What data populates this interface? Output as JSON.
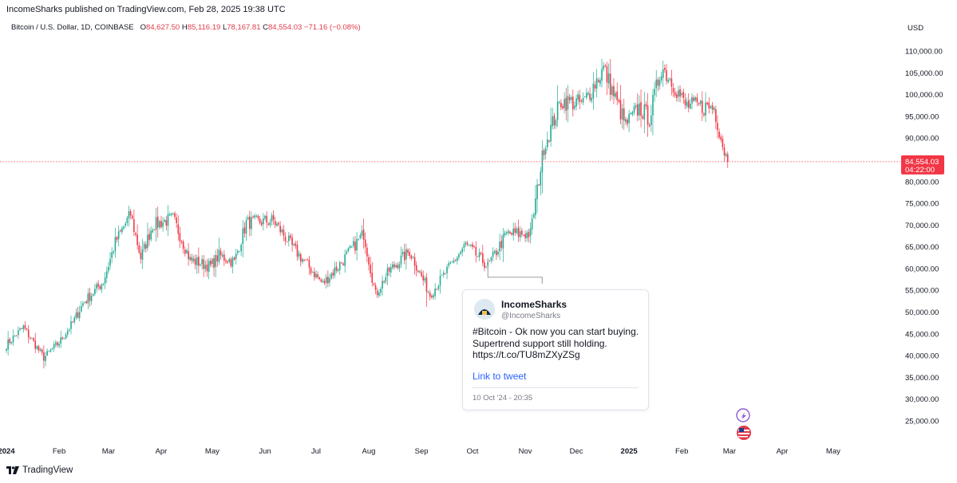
{
  "header": {
    "published": "IncomeSharks published on TradingView.com, Feb 28, 2025 19:38 UTC"
  },
  "legend": {
    "symbol": "Bitcoin / U.S. Dollar, 1D, COINBASE",
    "o_label": "O",
    "o_value": "84,627.50",
    "h_label": "H",
    "h_value": "85,116.19",
    "l_label": "L",
    "l_value": "78,167.81",
    "c_label": "C",
    "c_value": "84,554.03",
    "change": "−71.16 (−0.08%)"
  },
  "price_axis": {
    "currency": "USD",
    "last_price": "84,554.03",
    "countdown": "04:22:00"
  },
  "tweet": {
    "name": "IncomeSharks",
    "handle": "@IncomeSharks",
    "line1": "#Bitcoin - Ok now you can start buying.",
    "line2": "Supertrend support still holding.",
    "line3": "https://t.co/TU8mZXyZSg",
    "link_label": "Link to tweet",
    "date": "10 Oct '24 - 20:35"
  },
  "footer": {
    "brand": "TradingView"
  },
  "colors": {
    "up": "#22ab94",
    "down": "#f23645",
    "last_price_bg": "#f23645",
    "link": "#2962ff"
  },
  "chart_data": {
    "type": "candlestick",
    "symbol": "BTCUSD",
    "exchange": "COINBASE",
    "interval": "1D",
    "y_ticks": [
      25000,
      30000,
      35000,
      40000,
      45000,
      50000,
      55000,
      60000,
      65000,
      70000,
      75000,
      80000,
      85000,
      90000,
      95000,
      100000,
      105000,
      110000
    ],
    "y_tick_labels": [
      "25,000.00",
      "30,000.00",
      "35,000.00",
      "40,000.00",
      "45,000.00",
      "50,000.00",
      "55,000.00",
      "60,000.00",
      "65,000.00",
      "70,000.00",
      "75,000.00",
      "80,000.00",
      "85,000.00",
      "90,000.00",
      "95,000.00",
      "100,000.00",
      "105,000.00",
      "110,000.00"
    ],
    "x_ticks": [
      {
        "date": "2024-01-01",
        "label": "2024"
      },
      {
        "date": "2024-02-01",
        "label": "Feb"
      },
      {
        "date": "2024-03-01",
        "label": "Mar"
      },
      {
        "date": "2024-04-01",
        "label": "Apr"
      },
      {
        "date": "2024-05-01",
        "label": "May"
      },
      {
        "date": "2024-06-01",
        "label": "Jun"
      },
      {
        "date": "2024-07-01",
        "label": "Jul"
      },
      {
        "date": "2024-08-01",
        "label": "Aug"
      },
      {
        "date": "2024-09-01",
        "label": "Sep"
      },
      {
        "date": "2024-10-01",
        "label": "Oct"
      },
      {
        "date": "2024-11-01",
        "label": "Nov"
      },
      {
        "date": "2024-12-01",
        "label": "Dec"
      },
      {
        "date": "2025-01-01",
        "label": "2025"
      },
      {
        "date": "2025-02-01",
        "label": "Feb"
      },
      {
        "date": "2025-03-01",
        "label": "Mar"
      },
      {
        "date": "2025-04-01",
        "label": "Apr"
      },
      {
        "date": "2025-05-01",
        "label": "May"
      }
    ],
    "last_close": 84554.03,
    "tweet_anchor": {
      "date": "2024-10-10",
      "price": 60200
    },
    "price_path": [
      {
        "date": "2024-01-01",
        "close": 42500
      },
      {
        "date": "2024-01-11",
        "close": 46500
      },
      {
        "date": "2024-01-23",
        "close": 39500
      },
      {
        "date": "2024-02-01",
        "close": 43000
      },
      {
        "date": "2024-02-09",
        "close": 47500
      },
      {
        "date": "2024-02-15",
        "close": 52000
      },
      {
        "date": "2024-02-27",
        "close": 57000
      },
      {
        "date": "2024-03-05",
        "close": 66000
      },
      {
        "date": "2024-03-14",
        "close": 72500
      },
      {
        "date": "2024-03-20",
        "close": 62500
      },
      {
        "date": "2024-03-27",
        "close": 70000
      },
      {
        "date": "2024-04-08",
        "close": 71500
      },
      {
        "date": "2024-04-18",
        "close": 62000
      },
      {
        "date": "2024-04-30",
        "close": 60500
      },
      {
        "date": "2024-05-05",
        "close": 63000
      },
      {
        "date": "2024-05-14",
        "close": 61500
      },
      {
        "date": "2024-05-21",
        "close": 70500
      },
      {
        "date": "2024-06-06",
        "close": 71000
      },
      {
        "date": "2024-06-18",
        "close": 64500
      },
      {
        "date": "2024-07-05",
        "close": 56500
      },
      {
        "date": "2024-07-14",
        "close": 60500
      },
      {
        "date": "2024-07-29",
        "close": 68000
      },
      {
        "date": "2024-08-05",
        "close": 54000
      },
      {
        "date": "2024-08-13",
        "close": 59500
      },
      {
        "date": "2024-08-25",
        "close": 64000
      },
      {
        "date": "2024-09-06",
        "close": 54000
      },
      {
        "date": "2024-09-17",
        "close": 60000
      },
      {
        "date": "2024-09-27",
        "close": 65500
      },
      {
        "date": "2024-10-10",
        "close": 60500
      },
      {
        "date": "2024-10-21",
        "close": 68000
      },
      {
        "date": "2024-11-04",
        "close": 68000
      },
      {
        "date": "2024-11-12",
        "close": 88000
      },
      {
        "date": "2024-11-22",
        "close": 98500
      },
      {
        "date": "2024-12-05",
        "close": 98000
      },
      {
        "date": "2024-12-17",
        "close": 106000
      },
      {
        "date": "2024-12-30",
        "close": 93000
      },
      {
        "date": "2025-01-07",
        "close": 97000
      },
      {
        "date": "2025-01-13",
        "close": 94500
      },
      {
        "date": "2025-01-20",
        "close": 106500
      },
      {
        "date": "2025-01-27",
        "close": 102500
      },
      {
        "date": "2025-02-03",
        "close": 97500
      },
      {
        "date": "2025-02-20",
        "close": 97000
      },
      {
        "date": "2025-02-25",
        "close": 88500
      },
      {
        "date": "2025-02-28",
        "close": 84554
      }
    ]
  }
}
